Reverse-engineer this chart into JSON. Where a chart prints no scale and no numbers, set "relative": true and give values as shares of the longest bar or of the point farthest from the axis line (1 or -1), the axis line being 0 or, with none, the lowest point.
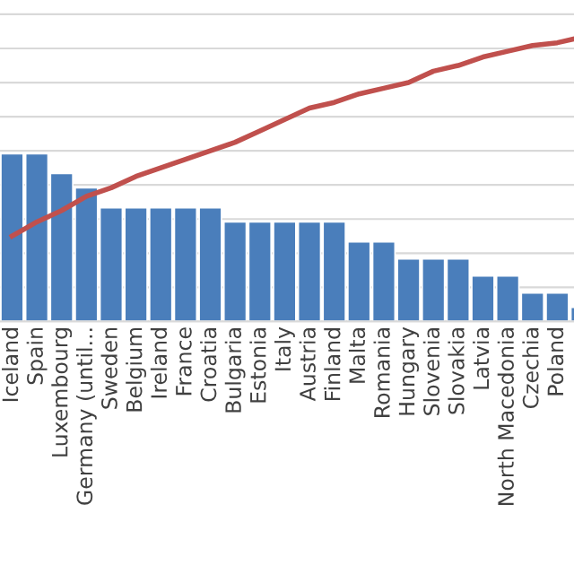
{
  "chart_data": {
    "type": "bar",
    "relative": true,
    "grid": "y",
    "legend": false,
    "categories": [
      "Iceland",
      "Spain",
      "Luxembourg",
      "Germany (until...",
      "Sweden",
      "Belgium",
      "Ireland",
      "France",
      "Croatia",
      "Bulgaria",
      "Estonia",
      "Italy",
      "Austria",
      "Finland",
      "Malta",
      "Romania",
      "Hungary",
      "Slovenia",
      "Slovakia",
      "Latvia",
      "North Macedonia",
      "Czechia",
      "Poland",
      null
    ],
    "series": [
      {
        "color": "#4a7ebb",
        "values": [
          0.59,
          0.59,
          0.52,
          0.47,
          0.4,
          0.4,
          0.4,
          0.4,
          0.4,
          0.35,
          0.35,
          0.35,
          0.35,
          0.35,
          0.28,
          0.28,
          0.22,
          0.22,
          0.22,
          0.16,
          0.16,
          0.1,
          0.1,
          0.05
        ]
      },
      {
        "type": "line",
        "color": "#c0504d",
        "marker": "none",
        "line_style": "solid",
        "values": [
          0.3,
          0.35,
          0.39,
          0.44,
          0.47,
          0.51,
          0.54,
          0.57,
          0.6,
          0.63,
          0.67,
          0.71,
          0.75,
          0.77,
          0.8,
          0.82,
          0.84,
          0.88,
          0.9,
          0.93,
          0.95,
          0.97,
          0.98,
          1.0
        ]
      }
    ]
  }
}
